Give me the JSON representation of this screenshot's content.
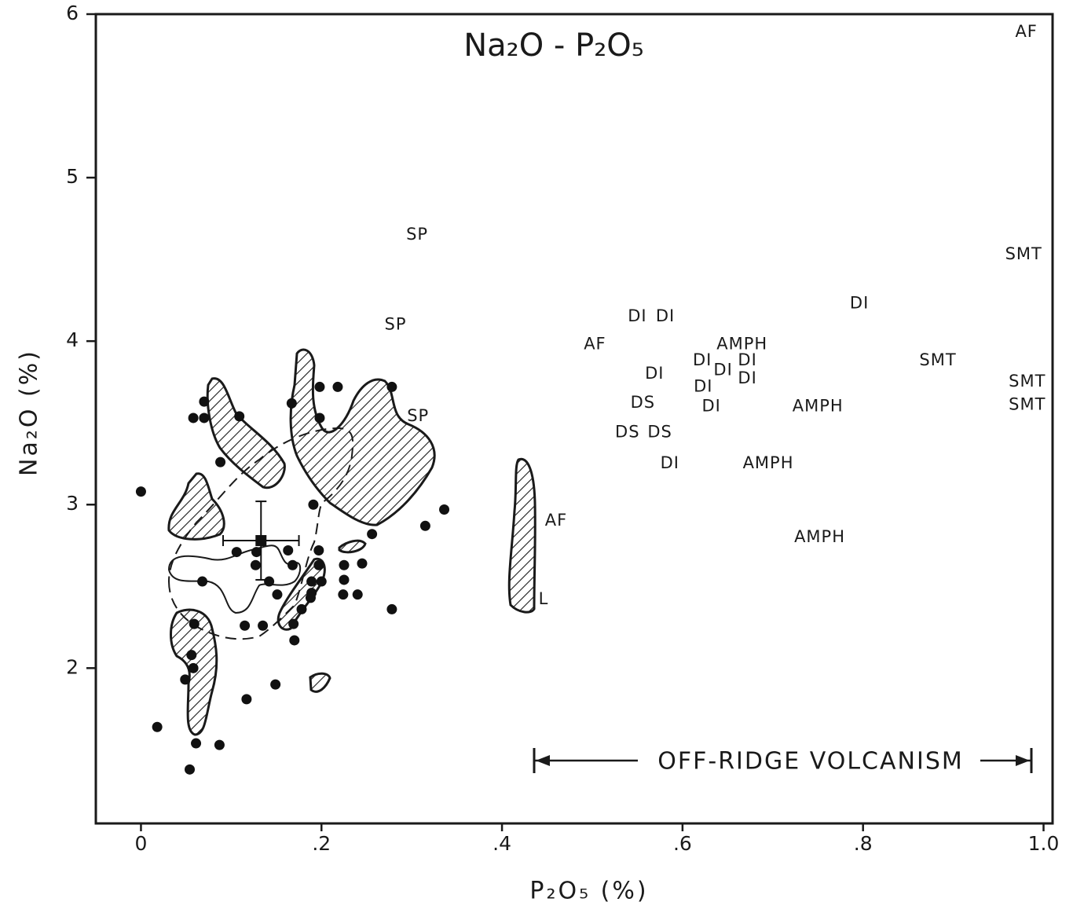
{
  "chart_data": {
    "type": "scatter",
    "title": "Na₂O - P₂O₅",
    "x_label": "P₂O₅ (%)",
    "y_label": "Na₂O (%)",
    "annotation": "OFF-RIDGE VOLCANISM",
    "xlim": [
      -0.05,
      1.01
    ],
    "ylim": [
      1.05,
      6.0
    ],
    "xticks": [
      0,
      {
        "value": 0.2,
        "label": ".2"
      },
      {
        "value": 0.4,
        "label": ".4"
      },
      {
        "value": 0.6,
        "label": ".6"
      },
      {
        "value": 0.8,
        "label": ".8"
      },
      {
        "value": 1,
        "label": "1.0"
      }
    ],
    "yticks": [
      2,
      3,
      4,
      5,
      6
    ],
    "series": [
      {
        "color": "#111111",
        "x": [
          0.0,
          0.018,
          0.054,
          0.061,
          0.087,
          0.058,
          0.07,
          0.07,
          0.109,
          0.088,
          0.068,
          0.059,
          0.056,
          0.058,
          0.049,
          0.106,
          0.128,
          0.127,
          0.142,
          0.115,
          0.117,
          0.149,
          0.151,
          0.135,
          0.163,
          0.168,
          0.167,
          0.169,
          0.17,
          0.178,
          0.189,
          0.189,
          0.198,
          0.198,
          0.218,
          0.191,
          0.197,
          0.197,
          0.2,
          0.188,
          0.225,
          0.225,
          0.224,
          0.24,
          0.245,
          0.256,
          0.278,
          0.278,
          0.315,
          0.336
        ],
        "values": [
          3.08,
          1.64,
          1.38,
          1.54,
          1.53,
          3.53,
          3.63,
          3.53,
          3.54,
          3.26,
          2.53,
          2.27,
          2.08,
          2.0,
          1.93,
          2.71,
          2.71,
          2.63,
          2.53,
          2.26,
          1.81,
          1.9,
          2.45,
          2.26,
          2.72,
          2.63,
          3.62,
          2.27,
          2.17,
          2.36,
          2.46,
          2.53,
          3.53,
          3.72,
          3.72,
          3.0,
          2.72,
          2.63,
          2.53,
          2.43,
          2.63,
          2.54,
          2.45,
          2.45,
          2.64,
          2.82,
          3.72,
          2.36,
          2.87,
          2.97
        ]
      },
      {
        "color": "#111111",
        "x": [
          0.133
        ],
        "values": [
          2.78
        ],
        "x_error": [
          0.042
        ],
        "y_error": [
          0.24
        ]
      },
      {
        "color": "#1a1a1a",
        "labels": [
          "SP",
          "SP",
          "SP",
          "AF",
          "DI",
          "DI",
          "DI",
          "DS",
          "DS",
          "DS",
          "DI",
          "DI",
          "DI",
          "DI",
          "DI",
          "DI",
          "DI",
          "AMPH",
          "AMPH",
          "AMPH",
          "AMPH",
          "DI",
          "SMT",
          "SMT",
          "SMT",
          "SMT",
          "AF",
          "AF",
          "L"
        ],
        "x": [
          0.306,
          0.282,
          0.307,
          0.503,
          0.55,
          0.581,
          0.569,
          0.556,
          0.539,
          0.575,
          0.586,
          0.622,
          0.645,
          0.672,
          0.672,
          0.623,
          0.632,
          0.666,
          0.75,
          0.695,
          0.752,
          0.796,
          0.883,
          0.978,
          0.982,
          0.982,
          0.981,
          0.46,
          0.446
        ],
        "values": [
          4.65,
          4.1,
          3.54,
          3.98,
          4.15,
          4.15,
          3.8,
          3.62,
          3.44,
          3.44,
          3.25,
          3.88,
          3.82,
          3.88,
          3.77,
          3.72,
          3.6,
          3.98,
          3.6,
          3.25,
          2.8,
          4.23,
          3.88,
          4.53,
          3.75,
          3.61,
          5.89,
          2.9,
          2.42
        ]
      }
    ]
  }
}
